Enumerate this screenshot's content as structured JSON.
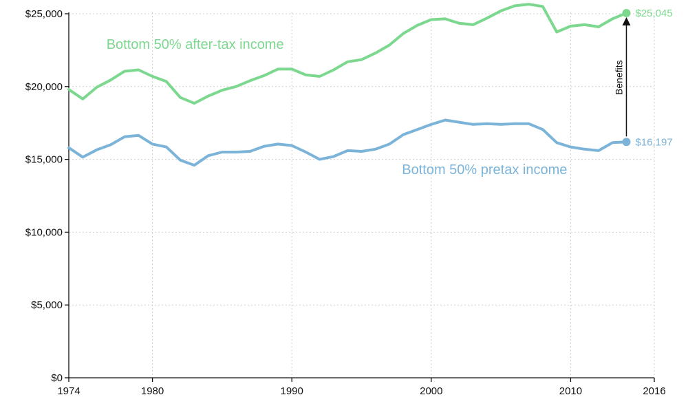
{
  "chart_data": {
    "type": "line",
    "title": "",
    "xlabel": "",
    "ylabel": "",
    "xlim": [
      1974,
      2016
    ],
    "ylim": [
      0,
      25000
    ],
    "grid": true,
    "x_ticks": [
      1974,
      1980,
      1990,
      2000,
      2010,
      2016
    ],
    "x_tick_labels": [
      "1974",
      "1980",
      "1990",
      "2000",
      "2010",
      "2016"
    ],
    "y_ticks": [
      0,
      5000,
      10000,
      15000,
      20000,
      25000
    ],
    "y_tick_labels": [
      "$0",
      "$5,000",
      "$10,000",
      "$15,000",
      "$20,000",
      "$25,000"
    ],
    "x": [
      1974,
      1975,
      1976,
      1977,
      1978,
      1979,
      1980,
      1981,
      1982,
      1983,
      1984,
      1985,
      1986,
      1987,
      1988,
      1989,
      1990,
      1991,
      1992,
      1993,
      1994,
      1995,
      1996,
      1997,
      1998,
      1999,
      2000,
      2001,
      2002,
      2003,
      2004,
      2005,
      2006,
      2007,
      2008,
      2009,
      2010,
      2011,
      2012,
      2013,
      2014
    ],
    "series": [
      {
        "name": "Bottom 50% after-tax income",
        "color": "#7dd88f",
        "values": [
          19800,
          19150,
          19950,
          20450,
          21050,
          21150,
          20700,
          20350,
          19250,
          18850,
          19350,
          19750,
          20000,
          20400,
          20750,
          21200,
          21200,
          20800,
          20700,
          21150,
          21700,
          21850,
          22300,
          22850,
          23650,
          24200,
          24600,
          24650,
          24350,
          24250,
          24700,
          25200,
          25550,
          25650,
          25500,
          23750,
          24150,
          24250,
          24100,
          24650,
          25045
        ],
        "end_label": "$25,045"
      },
      {
        "name": "Bottom 50% pretax income",
        "color": "#7bb4d8",
        "values": [
          15800,
          15150,
          15650,
          16000,
          16550,
          16650,
          16050,
          15850,
          14950,
          14600,
          15250,
          15500,
          15500,
          15550,
          15900,
          16050,
          15950,
          15500,
          15000,
          15200,
          15600,
          15550,
          15700,
          16050,
          16700,
          17050,
          17400,
          17700,
          17550,
          17400,
          17450,
          17400,
          17450,
          17450,
          17050,
          16150,
          15850,
          15700,
          15600,
          16150,
          16197
        ],
        "end_label": "$16,197"
      }
    ],
    "annotation": {
      "text": "Benefits",
      "from_value": 16197,
      "to_value": 25045,
      "x": 2014
    }
  }
}
